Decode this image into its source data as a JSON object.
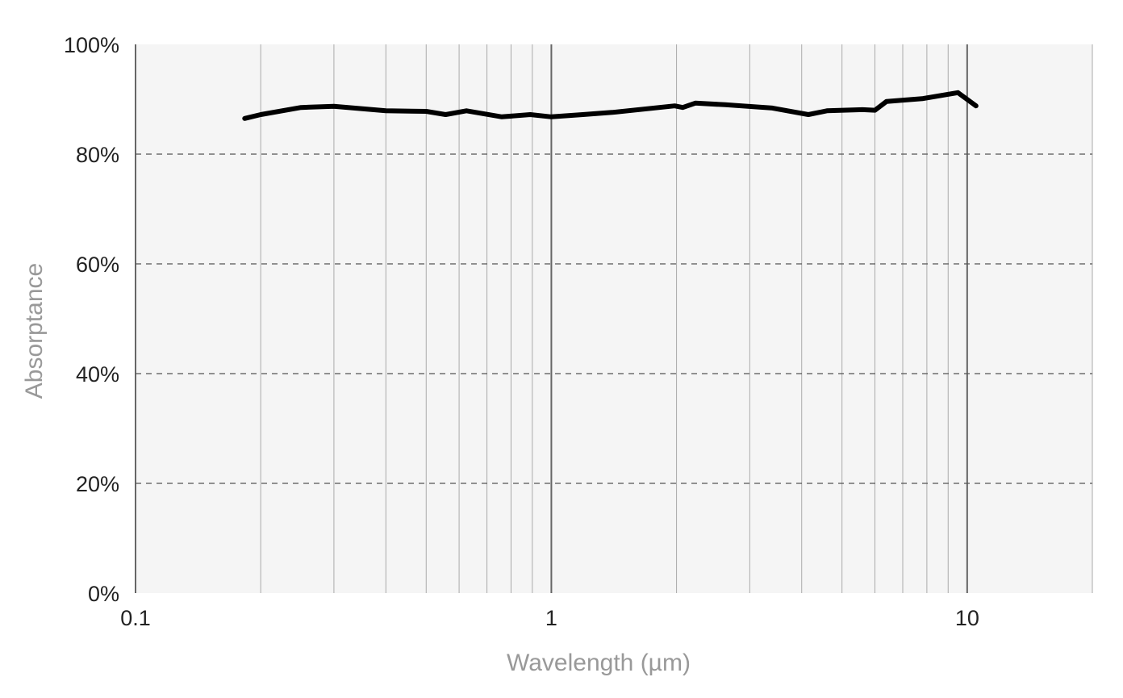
{
  "chart_data": {
    "type": "line",
    "title": "",
    "xlabel": "Wavelength (µm)",
    "ylabel": "Absorptance",
    "x_scale": "log",
    "xlim": [
      0.1,
      20
    ],
    "ylim": [
      0,
      100
    ],
    "x_ticks": [
      {
        "value": 0.1,
        "label": "0.1"
      },
      {
        "value": 1,
        "label": "1"
      },
      {
        "value": 10,
        "label": "10"
      }
    ],
    "y_ticks": [
      {
        "value": 0,
        "label": "0%"
      },
      {
        "value": 20,
        "label": "20%"
      },
      {
        "value": 40,
        "label": "40%"
      },
      {
        "value": 60,
        "label": "60%"
      },
      {
        "value": 80,
        "label": "80%"
      },
      {
        "value": 100,
        "label": "100%"
      }
    ],
    "grid": {
      "x_minor": true,
      "y": "dashed"
    },
    "colors": {
      "plot_background": "#f5f5f5",
      "line": "#000000",
      "grid_vertical": "#aaaaaa",
      "grid_decade": "#666666",
      "grid_horizontal": "#555555"
    },
    "series": [
      {
        "x": [
          0.183,
          0.2,
          0.25,
          0.3,
          0.4,
          0.5,
          0.557,
          0.625,
          0.76,
          0.89,
          1.0,
          1.19,
          1.4,
          1.98,
          2.07,
          2.22,
          2.62,
          3.4,
          4.15,
          4.6,
          5.6,
          6.0,
          6.4,
          7.8,
          9.5,
          10.5
        ],
        "y": [
          86.5,
          87.2,
          88.5,
          88.7,
          87.9,
          87.8,
          87.2,
          87.9,
          86.8,
          87.2,
          86.8,
          87.2,
          87.6,
          88.8,
          88.5,
          89.3,
          89.0,
          88.4,
          87.2,
          87.9,
          88.1,
          88.0,
          89.6,
          90.1,
          91.2,
          88.8
        ]
      }
    ]
  }
}
